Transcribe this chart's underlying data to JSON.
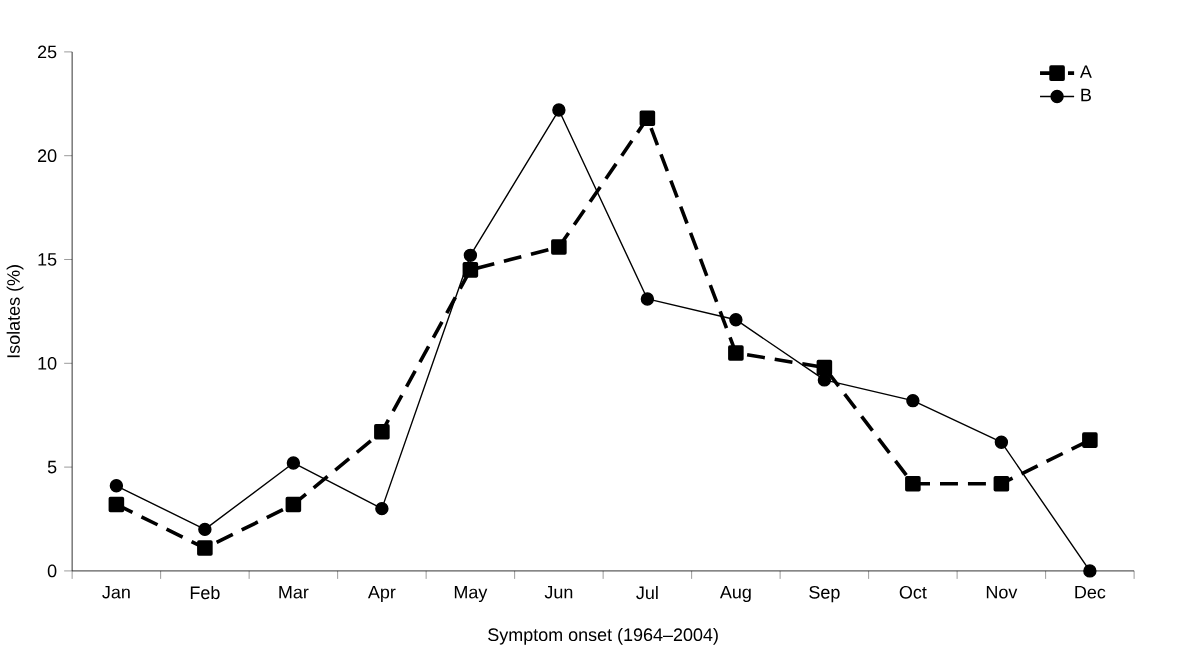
{
  "chart_data": {
    "type": "line",
    "xlabel": "Symptom onset (1964–2004)",
    "ylabel": "Isolates  (%)",
    "categories": [
      "Jan",
      "Feb",
      "Mar",
      "Apr",
      "May",
      "Jun",
      "Jul",
      "Aug",
      "Sep",
      "Oct",
      "Nov",
      "Dec"
    ],
    "ylim": [
      0,
      25
    ],
    "yticks": [
      0,
      5,
      10,
      15,
      20,
      25
    ],
    "grid": false,
    "legend": "top right",
    "series": [
      {
        "name": "A",
        "color": "#000000",
        "marker": "square",
        "line_style": "dashed",
        "values": [
          3.2,
          1.1,
          3.2,
          6.7,
          14.5,
          15.6,
          21.8,
          10.5,
          9.8,
          4.2,
          4.2,
          6.3
        ]
      },
      {
        "name": "B",
        "color": "#000000",
        "marker": "circle",
        "line_style": "solid",
        "values": [
          4.1,
          2.0,
          5.2,
          3.0,
          15.2,
          22.2,
          13.1,
          12.1,
          9.2,
          8.2,
          6.2,
          0
        ]
      }
    ]
  }
}
